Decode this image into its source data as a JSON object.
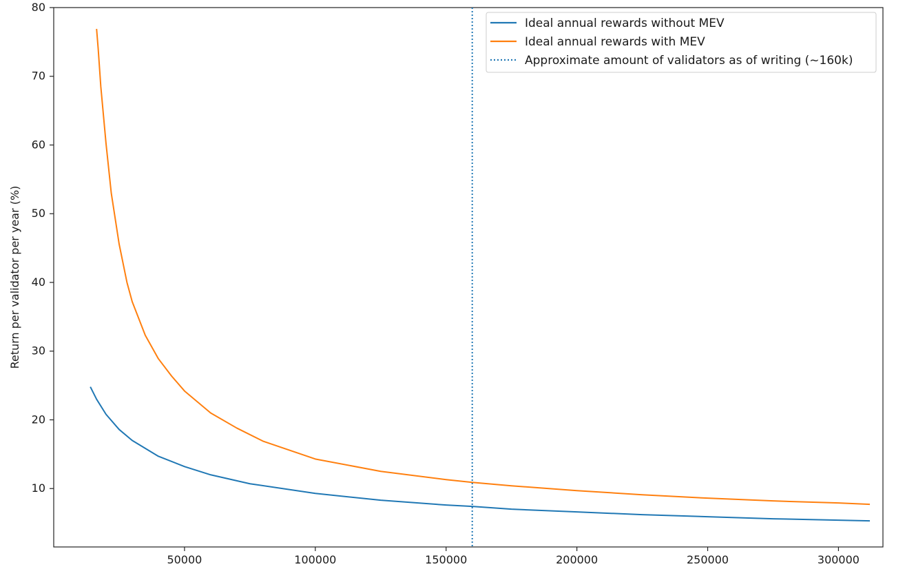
{
  "chart_data": {
    "type": "line",
    "title": "",
    "xlabel": "",
    "ylabel": "Return per validator per year (%)",
    "xlim": [
      0,
      317000
    ],
    "ylim": [
      1.5,
      80
    ],
    "xticks": [
      50000,
      100000,
      150000,
      200000,
      250000,
      300000
    ],
    "xtick_labels": [
      "50000",
      "100000",
      "150000",
      "200000",
      "250000",
      "300000"
    ],
    "yticks": [
      10,
      20,
      30,
      40,
      50,
      60,
      70,
      80
    ],
    "ytick_labels": [
      "10",
      "20",
      "30",
      "40",
      "50",
      "60",
      "70",
      "80"
    ],
    "grid": false,
    "legend_position": "top-right",
    "series": [
      {
        "name": "Ideal annual rewards without MEV",
        "color": "#1f77b4",
        "style": "solid",
        "x": [
          14000,
          16384,
          20000,
          25000,
          30000,
          40000,
          50000,
          60000,
          75000,
          100000,
          125000,
          150000,
          160000,
          175000,
          200000,
          225000,
          250000,
          275000,
          300000,
          312000
        ],
        "y": [
          24.8,
          23.0,
          20.8,
          18.6,
          17.0,
          14.7,
          13.2,
          12.0,
          10.7,
          9.3,
          8.3,
          7.6,
          7.4,
          7.0,
          6.6,
          6.2,
          5.9,
          5.6,
          5.4,
          5.3
        ]
      },
      {
        "name": "Ideal annual rewards with MEV",
        "color": "#ff7f0e",
        "style": "solid",
        "x": [
          16384,
          17000,
          18000,
          20000,
          22000,
          25000,
          28000,
          30000,
          35000,
          40000,
          45000,
          50000,
          60000,
          70000,
          80000,
          100000,
          125000,
          150000,
          160000,
          175000,
          200000,
          225000,
          250000,
          275000,
          300000,
          312000
        ],
        "y": [
          76.9,
          74.0,
          68.5,
          60.2,
          53.0,
          45.6,
          40.0,
          37.2,
          32.3,
          28.9,
          26.4,
          24.2,
          21.0,
          18.8,
          16.9,
          14.3,
          12.5,
          11.3,
          10.9,
          10.4,
          9.7,
          9.1,
          8.6,
          8.2,
          7.9,
          7.7
        ]
      },
      {
        "name": "Approximate amount of validators as of writing (~160k)",
        "color": "#1f77b4",
        "style": "dotted",
        "vline_x": 160000
      }
    ]
  }
}
